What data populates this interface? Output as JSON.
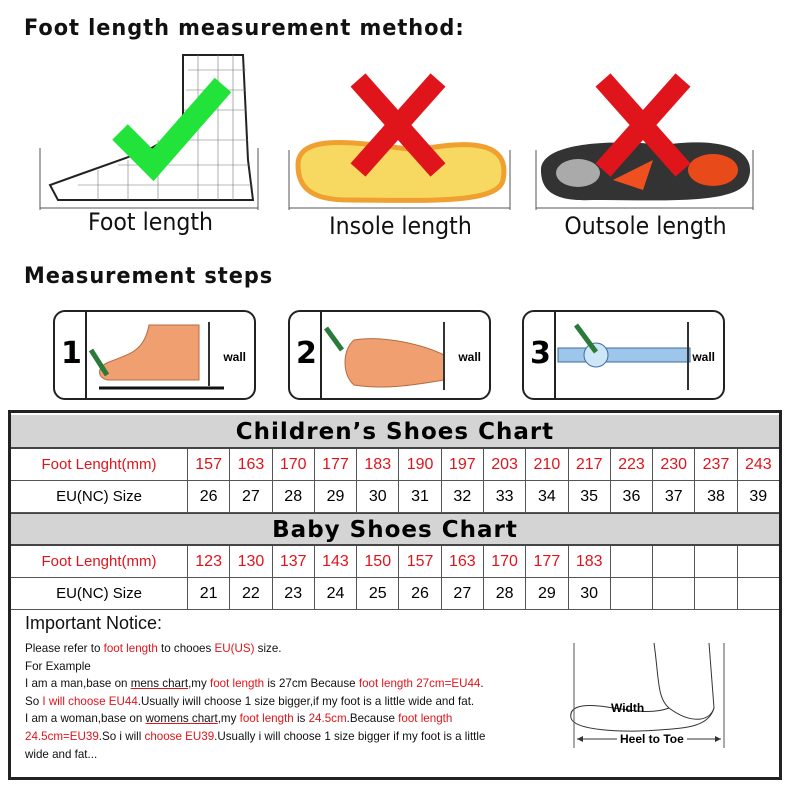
{
  "title": "Foot length measurement method:",
  "methods": [
    {
      "label": "Foot length",
      "status": "correct"
    },
    {
      "label": "Insole length",
      "status": "wrong"
    },
    {
      "label": "Outsole length",
      "status": "wrong"
    }
  ],
  "steps_title": "Measurement steps",
  "steps": [
    {
      "num": "1",
      "wall": "wall"
    },
    {
      "num": "2",
      "wall": "wall"
    },
    {
      "num": "3",
      "wall": "wall"
    }
  ],
  "children_chart": {
    "title": "Children’s Shoes Chart",
    "length_label": "Foot Lenght(mm)",
    "size_label": "EU(NC) Size",
    "lengths": [
      "157",
      "163",
      "170",
      "177",
      "183",
      "190",
      "197",
      "203",
      "210",
      "217",
      "223",
      "230",
      "237",
      "243"
    ],
    "sizes": [
      "26",
      "27",
      "28",
      "29",
      "30",
      "31",
      "32",
      "33",
      "34",
      "35",
      "36",
      "37",
      "38",
      "39"
    ]
  },
  "baby_chart": {
    "title": "Baby Shoes Chart",
    "length_label": "Foot Lenght(mm)",
    "size_label": "EU(NC) Size",
    "lengths": [
      "123",
      "130",
      "137",
      "143",
      "150",
      "157",
      "163",
      "170",
      "177",
      "183",
      "",
      "",
      "",
      ""
    ],
    "sizes": [
      "21",
      "22",
      "23",
      "24",
      "25",
      "26",
      "27",
      "28",
      "29",
      "30",
      "",
      "",
      "",
      ""
    ]
  },
  "notice": {
    "title": "Important Notice:",
    "lines": [
      [
        {
          "t": "Please refer to "
        },
        {
          "t": "foot length",
          "red": true
        },
        {
          "t": " to chooes "
        },
        {
          "t": "EU(US)",
          "red": true
        },
        {
          "t": " size."
        }
      ],
      [
        {
          "t": "For Example"
        }
      ],
      [
        {
          "t": "I am a man,base on "
        },
        {
          "t": "mens chart",
          "u": true
        },
        {
          "t": ",my "
        },
        {
          "t": "foot length",
          "red": true
        },
        {
          "t": " is 27cm Because "
        },
        {
          "t": "foot length 27cm=EU44",
          "red": true
        },
        {
          "t": "."
        }
      ],
      [
        {
          "t": "So "
        },
        {
          "t": "I will choose EU44",
          "red": true
        },
        {
          "t": ".Usually iwill choose 1 size bigger,if my foot is a little wide and fat."
        }
      ],
      [
        {
          "t": "I am a woman,base on "
        },
        {
          "t": "womens chart",
          "u": true
        },
        {
          "t": ",my "
        },
        {
          "t": "foot length",
          "red": true
        },
        {
          "t": " is "
        },
        {
          "t": "24.5cm",
          "red": true
        },
        {
          "t": ".Because "
        },
        {
          "t": "foot length",
          "red": true
        }
      ],
      [
        {
          "t": "24.5cm=EU39",
          "red": true
        },
        {
          "t": ".So i will "
        },
        {
          "t": "choose EU39",
          "red": true
        },
        {
          "t": ".Usually i will choose 1 size bigger if my foot is a little"
        }
      ],
      [
        {
          "t": "wide and fat..."
        }
      ]
    ]
  },
  "diagram": {
    "width_label": "Width",
    "heel_label": "Heel to Toe"
  },
  "colors": {
    "red": "#e0141b",
    "check": "#22e33a",
    "header_bg": "#d4d4d4",
    "insole": "#f7d860"
  }
}
